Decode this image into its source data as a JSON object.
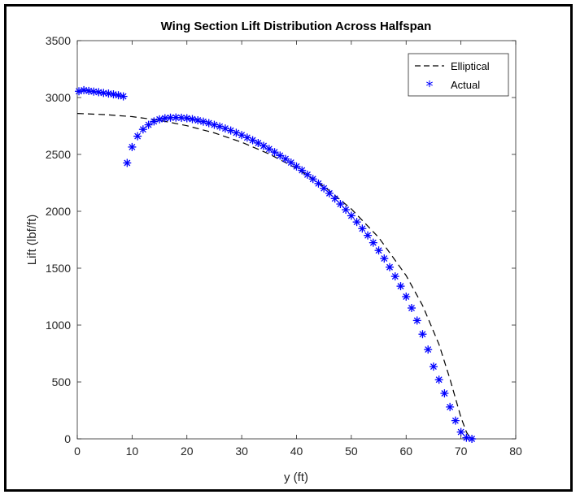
{
  "chart_data": {
    "type": "line",
    "title": "Wing Section Lift Distribution Across Halfspan",
    "xlabel": "y (ft)",
    "ylabel": "Lift (lbf/ft)",
    "xlim": [
      0,
      80
    ],
    "ylim": [
      0,
      3500
    ],
    "xticks": [
      0,
      10,
      20,
      30,
      40,
      50,
      60,
      70,
      80
    ],
    "yticks": [
      0,
      500,
      1000,
      1500,
      2000,
      2500,
      3000,
      3500
    ],
    "grid": false,
    "legend_position": "top-right",
    "series": [
      {
        "name": "Elliptical",
        "style": "dashed-line",
        "color": "#000000",
        "x": [
          0,
          5,
          10,
          15,
          20,
          25,
          30,
          35,
          40,
          45,
          50,
          55,
          60,
          63,
          66,
          68,
          70,
          71,
          71.5,
          72,
          72.3,
          72.5
        ],
        "y": [
          2860,
          2850,
          2832,
          2800,
          2752,
          2689,
          2607,
          2504,
          2377,
          2219,
          2021,
          1769,
          1435,
          1172,
          830,
          527,
          190,
          60,
          20,
          8,
          2,
          0
        ]
      },
      {
        "name": "Actual",
        "style": "asterisk-markers",
        "color": "#0000ff",
        "x": [
          0.3,
          1.2,
          2.1,
          3.0,
          3.9,
          4.8,
          5.7,
          6.6,
          7.5,
          8.4,
          9.1,
          10.0,
          11.0,
          12.0,
          13.0,
          14.0,
          15.0,
          16.0,
          17.0,
          18.0,
          19.0,
          20.0,
          21.0,
          22.0,
          23.0,
          24.0,
          25.0,
          26.0,
          27.0,
          28.0,
          29.0,
          30.0,
          31.0,
          32.0,
          33.0,
          34.0,
          35.0,
          36.0,
          37.0,
          38.0,
          39.0,
          40.0,
          41.0,
          42.0,
          43.0,
          44.0,
          45.0,
          46.0,
          47.0,
          48.0,
          49.0,
          50.0,
          51.0,
          52.0,
          53.0,
          54.0,
          55.0,
          56.0,
          57.0,
          58.0,
          59.0,
          60.0,
          61.0,
          62.0,
          63.0,
          64.0,
          65.0,
          66.0,
          67.0,
          68.0,
          69.0,
          70.0,
          71.0,
          72.0
        ],
        "y": [
          3055,
          3065,
          3058,
          3052,
          3047,
          3040,
          3035,
          3028,
          3020,
          3010,
          2425,
          2565,
          2660,
          2720,
          2760,
          2790,
          2808,
          2818,
          2823,
          2824,
          2822,
          2818,
          2810,
          2800,
          2788,
          2775,
          2760,
          2745,
          2728,
          2710,
          2690,
          2670,
          2648,
          2625,
          2600,
          2575,
          2548,
          2520,
          2490,
          2460,
          2428,
          2394,
          2360,
          2322,
          2284,
          2244,
          2202,
          2158,
          2112,
          2064,
          2014,
          1961,
          1906,
          1848,
          1788,
          1724,
          1656,
          1585,
          1509,
          1428,
          1342,
          1250,
          1150,
          1040,
          920,
          785,
          635,
          520,
          400,
          280,
          160,
          60,
          10,
          0
        ]
      }
    ]
  }
}
